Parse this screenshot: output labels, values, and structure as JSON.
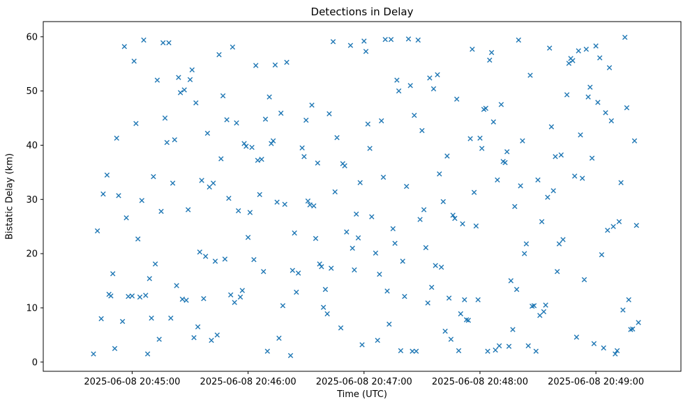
{
  "chart_data": {
    "type": "scatter",
    "title": "Detections in Delay",
    "xlabel": "Time (UTC)",
    "ylabel": "Bistatic Delay (km)",
    "marker": "x",
    "marker_color": "#1f77b4",
    "axis_color": "#000000",
    "x_unit": "seconds after 2025-06-08 20:44:00 UTC",
    "xlim": [
      14,
      344
    ],
    "ylim": [
      -1.7,
      62.8
    ],
    "y_ticks": [
      0,
      10,
      20,
      30,
      40,
      50,
      60
    ],
    "x_ticks": [
      {
        "t": 60,
        "label": "2025-06-08 20:45:00"
      },
      {
        "t": 120,
        "label": "2025-06-08 20:46:00"
      },
      {
        "t": 180,
        "label": "2025-06-08 20:47:00"
      },
      {
        "t": 240,
        "label": "2025-06-08 20:48:00"
      },
      {
        "t": 300,
        "label": "2025-06-08 20:49:00"
      }
    ],
    "points": [
      [
        40,
        1.5
      ],
      [
        42,
        24.2
      ],
      [
        44,
        8.0
      ],
      [
        45,
        31.0
      ],
      [
        47,
        34.5
      ],
      [
        48,
        12.5
      ],
      [
        49,
        12.2
      ],
      [
        50,
        16.3
      ],
      [
        51,
        2.5
      ],
      [
        52,
        41.3
      ],
      [
        53,
        30.7
      ],
      [
        55,
        7.5
      ],
      [
        56,
        58.2
      ],
      [
        57,
        26.6
      ],
      [
        58,
        12.1
      ],
      [
        60,
        12.2
      ],
      [
        61,
        55.5
      ],
      [
        62,
        44.0
      ],
      [
        63,
        22.7
      ],
      [
        64,
        12.0
      ],
      [
        65,
        29.8
      ],
      [
        66,
        59.4
      ],
      [
        67,
        12.3
      ],
      [
        68,
        1.5
      ],
      [
        69,
        15.4
      ],
      [
        70,
        8.1
      ],
      [
        71,
        34.2
      ],
      [
        72,
        18.1
      ],
      [
        73,
        52.0
      ],
      [
        74,
        4.2
      ],
      [
        75,
        27.8
      ],
      [
        76,
        58.9
      ],
      [
        77,
        45.0
      ],
      [
        78,
        40.5
      ],
      [
        79,
        58.9
      ],
      [
        80,
        8.1
      ],
      [
        81,
        33.0
      ],
      [
        82,
        41.0
      ],
      [
        83,
        14.1
      ],
      [
        84,
        52.5
      ],
      [
        85,
        49.7
      ],
      [
        86,
        11.6
      ],
      [
        87,
        50.2
      ],
      [
        88,
        11.4
      ],
      [
        89,
        28.1
      ],
      [
        90,
        52.1
      ],
      [
        91,
        53.9
      ],
      [
        92,
        4.5
      ],
      [
        93,
        47.8
      ],
      [
        94,
        6.5
      ],
      [
        95,
        20.3
      ],
      [
        96,
        33.5
      ],
      [
        97,
        11.7
      ],
      [
        98,
        19.5
      ],
      [
        99,
        42.2
      ],
      [
        100,
        32.3
      ],
      [
        101,
        4.0
      ],
      [
        102,
        33.0
      ],
      [
        103,
        18.6
      ],
      [
        104,
        5.0
      ],
      [
        105,
        56.7
      ],
      [
        106,
        37.5
      ],
      [
        107,
        49.1
      ],
      [
        108,
        19.0
      ],
      [
        109,
        44.7
      ],
      [
        110,
        30.2
      ],
      [
        111,
        12.4
      ],
      [
        112,
        58.1
      ],
      [
        113,
        11.0
      ],
      [
        114,
        44.1
      ],
      [
        115,
        27.9
      ],
      [
        116,
        12.0
      ],
      [
        117,
        13.2
      ],
      [
        118,
        40.3
      ],
      [
        119,
        39.8
      ],
      [
        120,
        23.0
      ],
      [
        121,
        27.6
      ],
      [
        122,
        39.6
      ],
      [
        123,
        18.9
      ],
      [
        124,
        54.7
      ],
      [
        125,
        37.2
      ],
      [
        126,
        30.9
      ],
      [
        127,
        37.4
      ],
      [
        128,
        16.7
      ],
      [
        129,
        44.8
      ],
      [
        130,
        2.0
      ],
      [
        131,
        48.9
      ],
      [
        132,
        40.3
      ],
      [
        133,
        40.8
      ],
      [
        134,
        54.8
      ],
      [
        135,
        29.5
      ],
      [
        136,
        4.4
      ],
      [
        137,
        45.9
      ],
      [
        138,
        10.4
      ],
      [
        139,
        29.1
      ],
      [
        140,
        55.3
      ],
      [
        142,
        1.2
      ],
      [
        143,
        16.9
      ],
      [
        144,
        23.8
      ],
      [
        145,
        12.9
      ],
      [
        146,
        16.4
      ],
      [
        148,
        39.5
      ],
      [
        149,
        37.9
      ],
      [
        150,
        44.6
      ],
      [
        151,
        29.7
      ],
      [
        152,
        29.0
      ],
      [
        153,
        47.4
      ],
      [
        154,
        28.8
      ],
      [
        155,
        22.8
      ],
      [
        156,
        36.7
      ],
      [
        157,
        18.1
      ],
      [
        158,
        17.6
      ],
      [
        159,
        10.1
      ],
      [
        160,
        13.4
      ],
      [
        161,
        8.9
      ],
      [
        162,
        45.8
      ],
      [
        163,
        17.3
      ],
      [
        164,
        59.1
      ],
      [
        165,
        31.4
      ],
      [
        166,
        41.4
      ],
      [
        168,
        6.3
      ],
      [
        169,
        36.6
      ],
      [
        170,
        36.2
      ],
      [
        171,
        24.0
      ],
      [
        173,
        58.4
      ],
      [
        174,
        21.0
      ],
      [
        175,
        17.0
      ],
      [
        176,
        27.3
      ],
      [
        177,
        22.9
      ],
      [
        178,
        33.1
      ],
      [
        179,
        3.2
      ],
      [
        180,
        59.2
      ],
      [
        181,
        57.3
      ],
      [
        182,
        43.9
      ],
      [
        183,
        39.4
      ],
      [
        184,
        26.8
      ],
      [
        186,
        20.1
      ],
      [
        187,
        4.0
      ],
      [
        188,
        16.2
      ],
      [
        189,
        44.5
      ],
      [
        190,
        34.1
      ],
      [
        191,
        59.5
      ],
      [
        192,
        13.1
      ],
      [
        193,
        7.0
      ],
      [
        194,
        59.5
      ],
      [
        195,
        24.6
      ],
      [
        196,
        21.9
      ],
      [
        197,
        52.0
      ],
      [
        198,
        50.0
      ],
      [
        199,
        2.1
      ],
      [
        200,
        18.6
      ],
      [
        201,
        12.1
      ],
      [
        202,
        32.4
      ],
      [
        203,
        59.6
      ],
      [
        204,
        51.0
      ],
      [
        205,
        2.0
      ],
      [
        206,
        45.5
      ],
      [
        207,
        2.0
      ],
      [
        208,
        59.4
      ],
      [
        209,
        26.3
      ],
      [
        210,
        42.7
      ],
      [
        211,
        28.1
      ],
      [
        212,
        21.1
      ],
      [
        213,
        10.9
      ],
      [
        214,
        52.4
      ],
      [
        215,
        13.8
      ],
      [
        216,
        50.4
      ],
      [
        217,
        17.8
      ],
      [
        218,
        53.0
      ],
      [
        219,
        34.7
      ],
      [
        220,
        17.5
      ],
      [
        221,
        29.6
      ],
      [
        222,
        5.7
      ],
      [
        223,
        38.0
      ],
      [
        224,
        11.8
      ],
      [
        225,
        4.2
      ],
      [
        226,
        27.1
      ],
      [
        227,
        26.5
      ],
      [
        228,
        48.5
      ],
      [
        229,
        2.1
      ],
      [
        230,
        8.9
      ],
      [
        231,
        25.5
      ],
      [
        232,
        11.5
      ],
      [
        233,
        7.8
      ],
      [
        234,
        7.7
      ],
      [
        235,
        41.2
      ],
      [
        236,
        57.7
      ],
      [
        237,
        31.3
      ],
      [
        238,
        25.1
      ],
      [
        239,
        11.5
      ],
      [
        240,
        41.3
      ],
      [
        241,
        39.4
      ],
      [
        242,
        46.6
      ],
      [
        243,
        46.8
      ],
      [
        244,
        2.0
      ],
      [
        245,
        55.7
      ],
      [
        246,
        57.1
      ],
      [
        247,
        44.3
      ],
      [
        248,
        2.2
      ],
      [
        249,
        33.6
      ],
      [
        250,
        3.0
      ],
      [
        251,
        47.5
      ],
      [
        252,
        37.0
      ],
      [
        253,
        36.8
      ],
      [
        254,
        38.8
      ],
      [
        255,
        2.9
      ],
      [
        256,
        15.0
      ],
      [
        257,
        6.0
      ],
      [
        258,
        28.7
      ],
      [
        259,
        13.4
      ],
      [
        260,
        59.4
      ],
      [
        261,
        32.5
      ],
      [
        262,
        40.8
      ],
      [
        263,
        20.0
      ],
      [
        264,
        21.8
      ],
      [
        265,
        3.0
      ],
      [
        266,
        52.9
      ],
      [
        267,
        10.3
      ],
      [
        268,
        10.4
      ],
      [
        269,
        2.0
      ],
      [
        270,
        33.6
      ],
      [
        271,
        8.6
      ],
      [
        272,
        25.9
      ],
      [
        273,
        9.3
      ],
      [
        274,
        10.5
      ],
      [
        275,
        30.4
      ],
      [
        276,
        57.9
      ],
      [
        277,
        43.4
      ],
      [
        278,
        31.6
      ],
      [
        279,
        37.9
      ],
      [
        280,
        16.7
      ],
      [
        281,
        21.8
      ],
      [
        282,
        38.2
      ],
      [
        283,
        22.6
      ],
      [
        285,
        49.3
      ],
      [
        286,
        55.1
      ],
      [
        287,
        56.0
      ],
      [
        288,
        55.6
      ],
      [
        289,
        34.3
      ],
      [
        290,
        4.6
      ],
      [
        291,
        57.4
      ],
      [
        292,
        41.9
      ],
      [
        293,
        33.9
      ],
      [
        294,
        15.2
      ],
      [
        295,
        57.7
      ],
      [
        296,
        48.9
      ],
      [
        297,
        50.7
      ],
      [
        298,
        37.6
      ],
      [
        299,
        3.4
      ],
      [
        300,
        58.3
      ],
      [
        301,
        47.9
      ],
      [
        302,
        56.1
      ],
      [
        303,
        19.8
      ],
      [
        304,
        2.6
      ],
      [
        305,
        46.0
      ],
      [
        306,
        24.3
      ],
      [
        307,
        54.3
      ],
      [
        308,
        44.5
      ],
      [
        309,
        25.0
      ],
      [
        310,
        1.5
      ],
      [
        311,
        2.1
      ],
      [
        312,
        25.9
      ],
      [
        313,
        33.1
      ],
      [
        314,
        9.6
      ],
      [
        315,
        59.9
      ],
      [
        316,
        46.9
      ],
      [
        317,
        11.5
      ],
      [
        318,
        6.0
      ],
      [
        319,
        6.1
      ],
      [
        320,
        40.8
      ],
      [
        321,
        25.2
      ],
      [
        322,
        7.3
      ]
    ]
  }
}
